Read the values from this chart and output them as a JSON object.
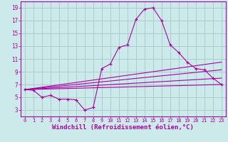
{
  "background_color": "#cceaea",
  "grid_color": "#aacccc",
  "line_color": "#aa00aa",
  "marker": "+",
  "xlabel": "Windchill (Refroidissement éolien,°C)",
  "xlabel_fontsize": 6.5,
  "xlim": [
    -0.5,
    23.5
  ],
  "ylim": [
    2,
    20
  ],
  "yticks": [
    3,
    5,
    7,
    9,
    11,
    13,
    15,
    17,
    19
  ],
  "xticks": [
    0,
    1,
    2,
    3,
    4,
    5,
    6,
    7,
    8,
    9,
    10,
    11,
    12,
    13,
    14,
    15,
    16,
    17,
    18,
    19,
    20,
    21,
    22,
    23
  ],
  "xticklabels": [
    "0",
    "1",
    "2",
    "3",
    "4",
    "5",
    "6",
    "7",
    "8",
    "9",
    "10",
    "11",
    "12",
    "13",
    "14",
    "15",
    "16",
    "17",
    "18",
    "19",
    "20",
    "21",
    "22",
    "23"
  ],
  "main_x": [
    0,
    1,
    2,
    3,
    4,
    5,
    6,
    7,
    8,
    9,
    10,
    11,
    12,
    13,
    14,
    15,
    16,
    17,
    18,
    19,
    20,
    21,
    22,
    23
  ],
  "main_y": [
    6.2,
    6.1,
    5.0,
    5.3,
    4.7,
    4.7,
    4.6,
    3.0,
    3.4,
    9.5,
    10.2,
    12.8,
    13.2,
    17.2,
    18.8,
    19.0,
    17.0,
    13.2,
    12.0,
    10.5,
    9.5,
    9.3,
    8.0,
    7.0
  ],
  "line1_x": [
    0,
    23
  ],
  "line1_y": [
    6.2,
    7.0
  ],
  "line2_x": [
    0,
    23
  ],
  "line2_y": [
    6.2,
    8.0
  ],
  "line3_x": [
    0,
    23
  ],
  "line3_y": [
    6.2,
    9.3
  ],
  "line4_x": [
    0,
    23
  ],
  "line4_y": [
    6.2,
    10.5
  ]
}
